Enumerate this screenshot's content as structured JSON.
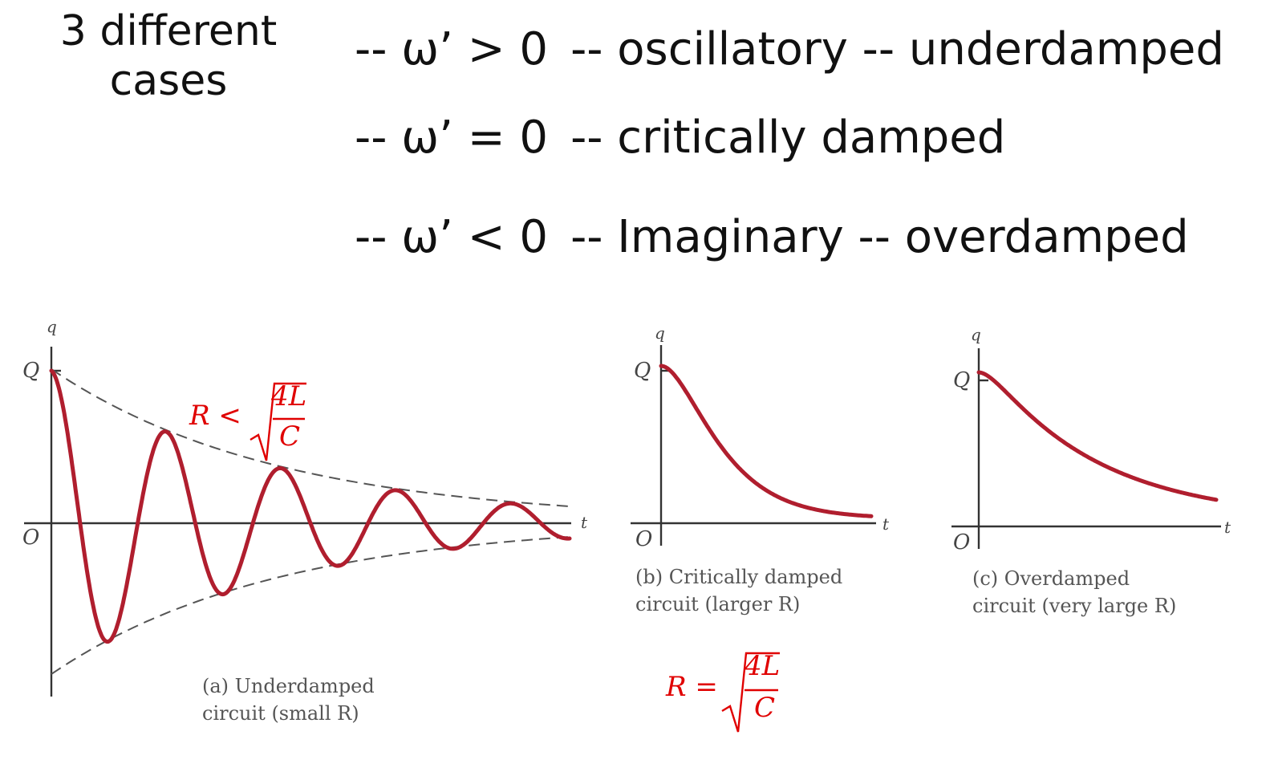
{
  "heading": "3 different cases",
  "cases": [
    {
      "condition": "-- ω’ > 0",
      "description": "-- oscillatory -- underdamped"
    },
    {
      "condition": "-- ω’ = 0",
      "description": "-- critically damped"
    },
    {
      "condition": "-- ω’ < 0",
      "description": "-- Imaginary -- overdamped"
    }
  ],
  "plots": [
    {
      "type": "line",
      "y_axis_label": "q",
      "y_tick_label": "Q",
      "x_axis_label": "t",
      "origin_label": "O",
      "caption_line1": "(a) Underdamped",
      "caption_line2": "circuit (small R)",
      "has_envelope": true
    },
    {
      "type": "line",
      "y_axis_label": "q",
      "y_tick_label": "Q",
      "x_axis_label": "t",
      "origin_label": "O",
      "caption_line1": "(b) Critically damped",
      "caption_line2": "circuit (larger R)"
    },
    {
      "type": "line",
      "y_axis_label": "q",
      "y_tick_label": "Q",
      "x_axis_label": "t",
      "origin_label": "O",
      "caption_line1": "(c) Overdamped",
      "caption_line2": "circuit (very large R)"
    }
  ],
  "formulas": {
    "underdamped": {
      "lhs": "R <",
      "numerator": "4L",
      "denominator": "C"
    },
    "critical": {
      "lhs": "R =",
      "numerator": "4L",
      "denominator": "C"
    }
  },
  "colors": {
    "curve": "#b01e2e",
    "formula": "#e00000",
    "text": "#111111"
  }
}
